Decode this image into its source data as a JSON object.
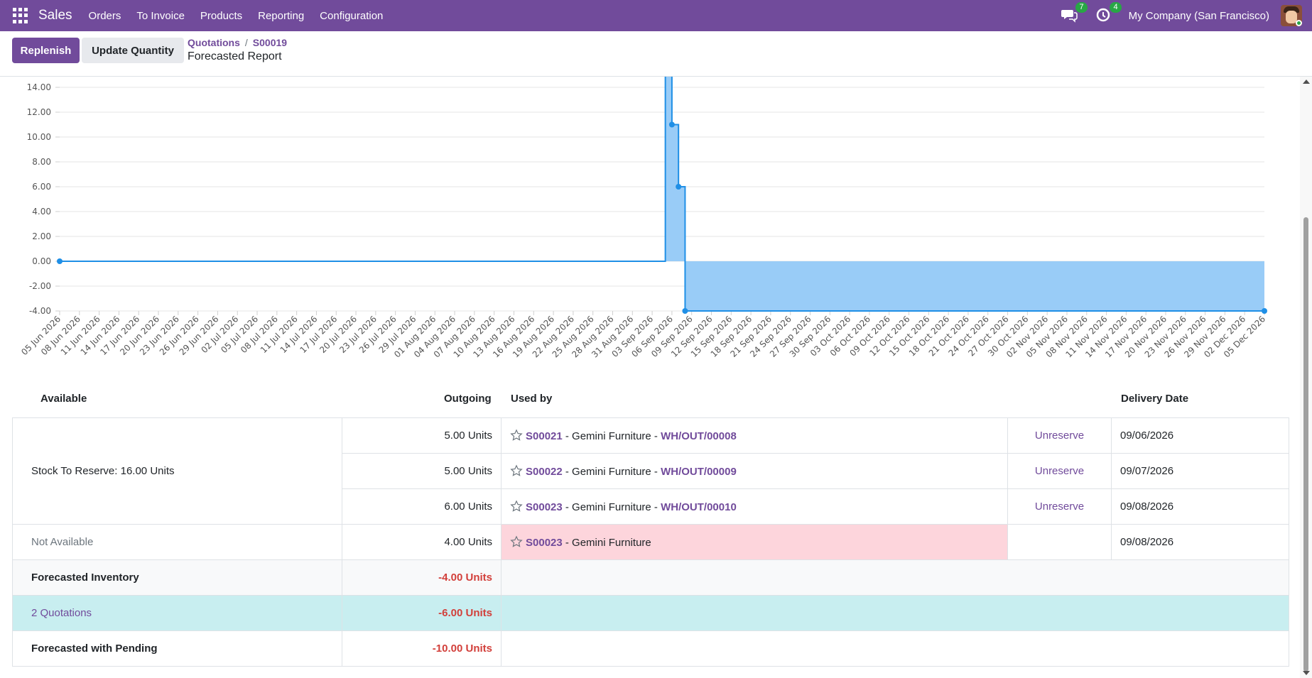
{
  "navbar": {
    "app_name": "Sales",
    "menu": [
      "Orders",
      "To Invoice",
      "Products",
      "Reporting",
      "Configuration"
    ],
    "messages_badge": "7",
    "activities_badge": "4",
    "company": "My Company (San Francisco)",
    "brand_color": "#714b9b"
  },
  "control": {
    "replenish_label": "Replenish",
    "update_qty_label": "Update Quantity",
    "breadcrumb": [
      "Quotations",
      "S00019"
    ],
    "title": "Forecasted Report"
  },
  "chart_data": {
    "type": "area",
    "style": "stepped",
    "x": [
      "05 Jun 2026",
      "05 Sep 2026",
      "06 Sep 2026",
      "07 Sep 2026",
      "08 Sep 2026",
      "05 Dec 2026"
    ],
    "y": [
      0,
      16,
      11,
      6,
      -4,
      -4
    ],
    "x_tick_labels": [
      "05 Jun 2026",
      "08 Jun 2026",
      "11 Jun 2026",
      "14 Jun 2026",
      "17 Jun 2026",
      "20 Jun 2026",
      "23 Jun 2026",
      "26 Jun 2026",
      "29 Jun 2026",
      "02 Jul 2026",
      "05 Jul 2026",
      "08 Jul 2026",
      "11 Jul 2026",
      "14 Jul 2026",
      "17 Jul 2026",
      "20 Jul 2026",
      "23 Jul 2026",
      "26 Jul 2026",
      "29 Jul 2026",
      "01 Aug 2026",
      "04 Aug 2026",
      "07 Aug 2026",
      "10 Aug 2026",
      "13 Aug 2026",
      "16 Aug 2026",
      "19 Aug 2026",
      "22 Aug 2026",
      "25 Aug 2026",
      "28 Aug 2026",
      "31 Aug 2026",
      "03 Sep 2026",
      "06 Sep 2026",
      "09 Sep 2026",
      "12 Sep 2026",
      "15 Sep 2026",
      "18 Sep 2026",
      "21 Sep 2026",
      "24 Sep 2026",
      "27 Sep 2026",
      "30 Sep 2026",
      "03 Oct 2026",
      "06 Oct 2026",
      "09 Oct 2026",
      "12 Oct 2026",
      "15 Oct 2026",
      "18 Oct 2026",
      "21 Oct 2026",
      "24 Oct 2026",
      "27 Oct 2026",
      "30 Oct 2026",
      "02 Nov 2026",
      "05 Nov 2026",
      "08 Nov 2026",
      "11 Nov 2026",
      "14 Nov 2026",
      "17 Nov 2026",
      "20 Nov 2026",
      "23 Nov 2026",
      "26 Nov 2026",
      "29 Nov 2026",
      "02 Dec 2026",
      "05 Dec 2026"
    ],
    "y_tick_labels": [
      "14.00",
      "12.00",
      "10.00",
      "8.00",
      "6.00",
      "4.00",
      "2.00",
      "0.00",
      "-2.00",
      "-4.00"
    ],
    "y_ticks": [
      14,
      12,
      10,
      8,
      6,
      4,
      2,
      0,
      -2,
      -4
    ],
    "ylim": [
      -4,
      15
    ],
    "grid": true,
    "line_color": "#1f8fe6",
    "fill_color": "#99ccf7"
  },
  "table": {
    "headers": {
      "available": "Available",
      "outgoing": "Outgoing",
      "used_by": "Used by",
      "delivery_date": "Delivery Date"
    },
    "stock_to_reserve": "Stock To Reserve: 16.00 Units",
    "reserved_rows": [
      {
        "outgoing": "5.00 Units",
        "ref": "S00021",
        "partner": " - Gemini Furniture - ",
        "picking": "WH/OUT/00008",
        "action": "Unreserve",
        "date": "09/06/2026"
      },
      {
        "outgoing": "5.00 Units",
        "ref": "S00022",
        "partner": " - Gemini Furniture - ",
        "picking": "WH/OUT/00009",
        "action": "Unreserve",
        "date": "09/07/2026"
      },
      {
        "outgoing": "6.00 Units",
        "ref": "S00023",
        "partner": " - Gemini Furniture - ",
        "picking": "WH/OUT/00010",
        "action": "Unreserve",
        "date": "09/08/2026"
      }
    ],
    "not_available": {
      "label": "Not Available",
      "outgoing": "4.00 Units",
      "ref": "S00023",
      "partner": " - Gemini Furniture",
      "date": "09/08/2026"
    },
    "forecasted_inventory": {
      "label": "Forecasted Inventory",
      "value": "-4.00 Units"
    },
    "quotations": {
      "label": "2 Quotations",
      "value": "-6.00 Units"
    },
    "forecasted_pending": {
      "label": "Forecasted with Pending",
      "value": "-10.00 Units"
    }
  }
}
